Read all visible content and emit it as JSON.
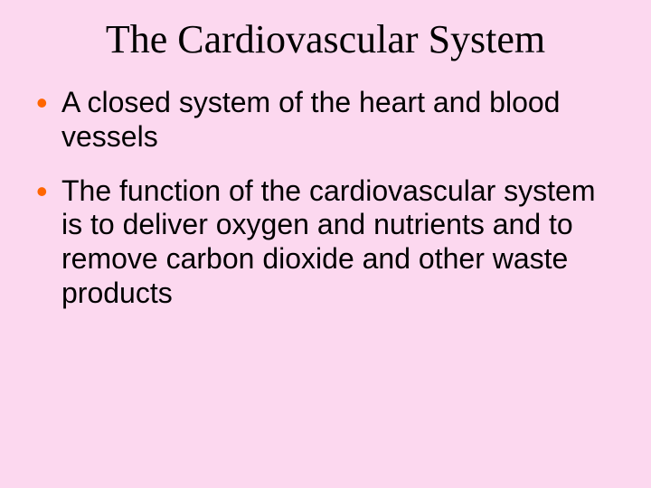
{
  "background_color": "#fcd8ef",
  "title": {
    "text": "The Cardiovascular System",
    "font_family": "Comic Sans MS",
    "font_size": 44,
    "color": "#000000",
    "align": "center"
  },
  "bullet_style": {
    "marker_color": "#ff6600",
    "marker_char": "•",
    "text_color": "#000000",
    "font_size": 32,
    "font_family": "Arial"
  },
  "bullets": [
    "A closed system of the heart and blood vessels",
    "The function of the cardiovascular system is to deliver oxygen and nutrients and to remove carbon dioxide and other waste products"
  ]
}
